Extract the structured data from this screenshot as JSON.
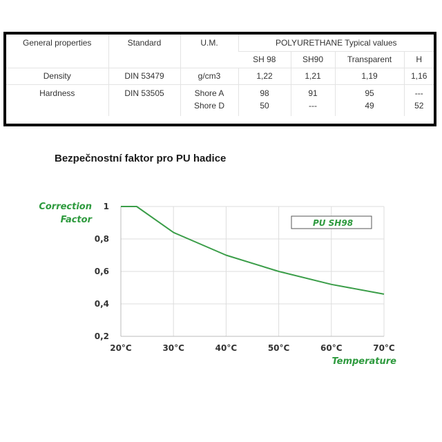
{
  "table": {
    "headers": {
      "properties": "General properties",
      "standard": "Standard",
      "um": "U.M.",
      "group": "POLYURETHANE Typical values"
    },
    "subheaders": [
      "SH 98",
      "SH90",
      "Transparent",
      "H"
    ],
    "rows": [
      {
        "property": "Density",
        "standard": "DIN 53479",
        "um": "g/cm3",
        "values": [
          "1,22",
          "1,21",
          "1,19",
          "1,16"
        ]
      },
      {
        "property": "Hardness",
        "standard": "DIN 53505",
        "um_a": "Shore A",
        "um_d": "Shore D",
        "values_a": [
          "98",
          "91",
          "95",
          "---"
        ],
        "values_d": [
          "50",
          "---",
          "49",
          "52"
        ]
      }
    ]
  },
  "chart_data": {
    "type": "line",
    "title": "Bezpečnostní faktor pro PU hadice",
    "ylabel_line1": "Correction",
    "ylabel_line2": "Factor",
    "xlabel": "Temperature",
    "x": [
      20,
      23,
      30,
      40,
      50,
      60,
      70
    ],
    "x_tick_labels": [
      "20°C",
      "30°C",
      "40°C",
      "50°C",
      "60°C",
      "70°C"
    ],
    "y_tick_labels": [
      "1",
      "0,8",
      "0,6",
      "0,4",
      "0,2"
    ],
    "xlim": [
      20,
      70
    ],
    "ylim": [
      0.2,
      1.0
    ],
    "series": [
      {
        "name": "PU SH98",
        "values": [
          1.0,
          1.0,
          0.84,
          0.7,
          0.6,
          0.52,
          0.46
        ]
      }
    ],
    "grid": true,
    "legend_position": "top-right",
    "colors": {
      "line": "#3a9d48",
      "grid": "#dddddd",
      "label": "#2e9a3e"
    }
  }
}
